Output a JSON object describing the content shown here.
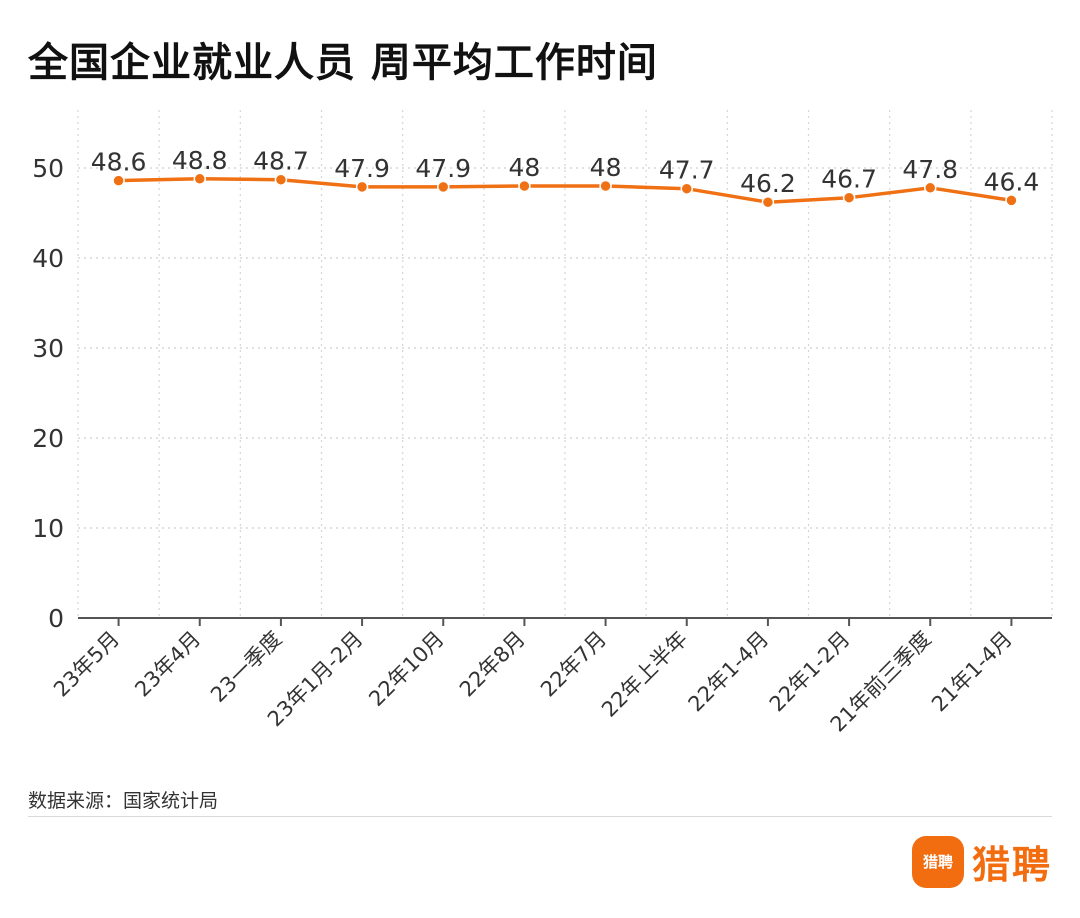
{
  "title": "全国企业就业人员 周平均工作时间",
  "source": "数据来源：国家统计局",
  "logo": {
    "badge_text": "猎聘",
    "brand_text": "猎聘",
    "color": "#f26d0f"
  },
  "chart_data": {
    "type": "line",
    "title": "全国企业就业人员 周平均工作时间",
    "xlabel": "",
    "ylabel": "",
    "ylim": [
      0,
      55
    ],
    "yticks": [
      0,
      10,
      20,
      30,
      40,
      50
    ],
    "categories": [
      "23年5月",
      "23年4月",
      "23一季度",
      "23年1月-2月",
      "22年10月",
      "22年8月",
      "22年7月",
      "22年上半年",
      "22年1-4月",
      "22年1-2月",
      "21年前三季度",
      "21年1-4月"
    ],
    "values": [
      48.6,
      48.8,
      48.7,
      47.9,
      47.9,
      48,
      48,
      47.7,
      46.2,
      46.7,
      47.8,
      46.4
    ],
    "value_labels": [
      "48.6",
      "48.8",
      "48.7",
      "47.9",
      "47.9",
      "48",
      "48",
      "47.7",
      "46.2",
      "46.7",
      "47.8",
      "46.4"
    ],
    "line_color": "#f07014",
    "grid": true,
    "legend": "none"
  }
}
